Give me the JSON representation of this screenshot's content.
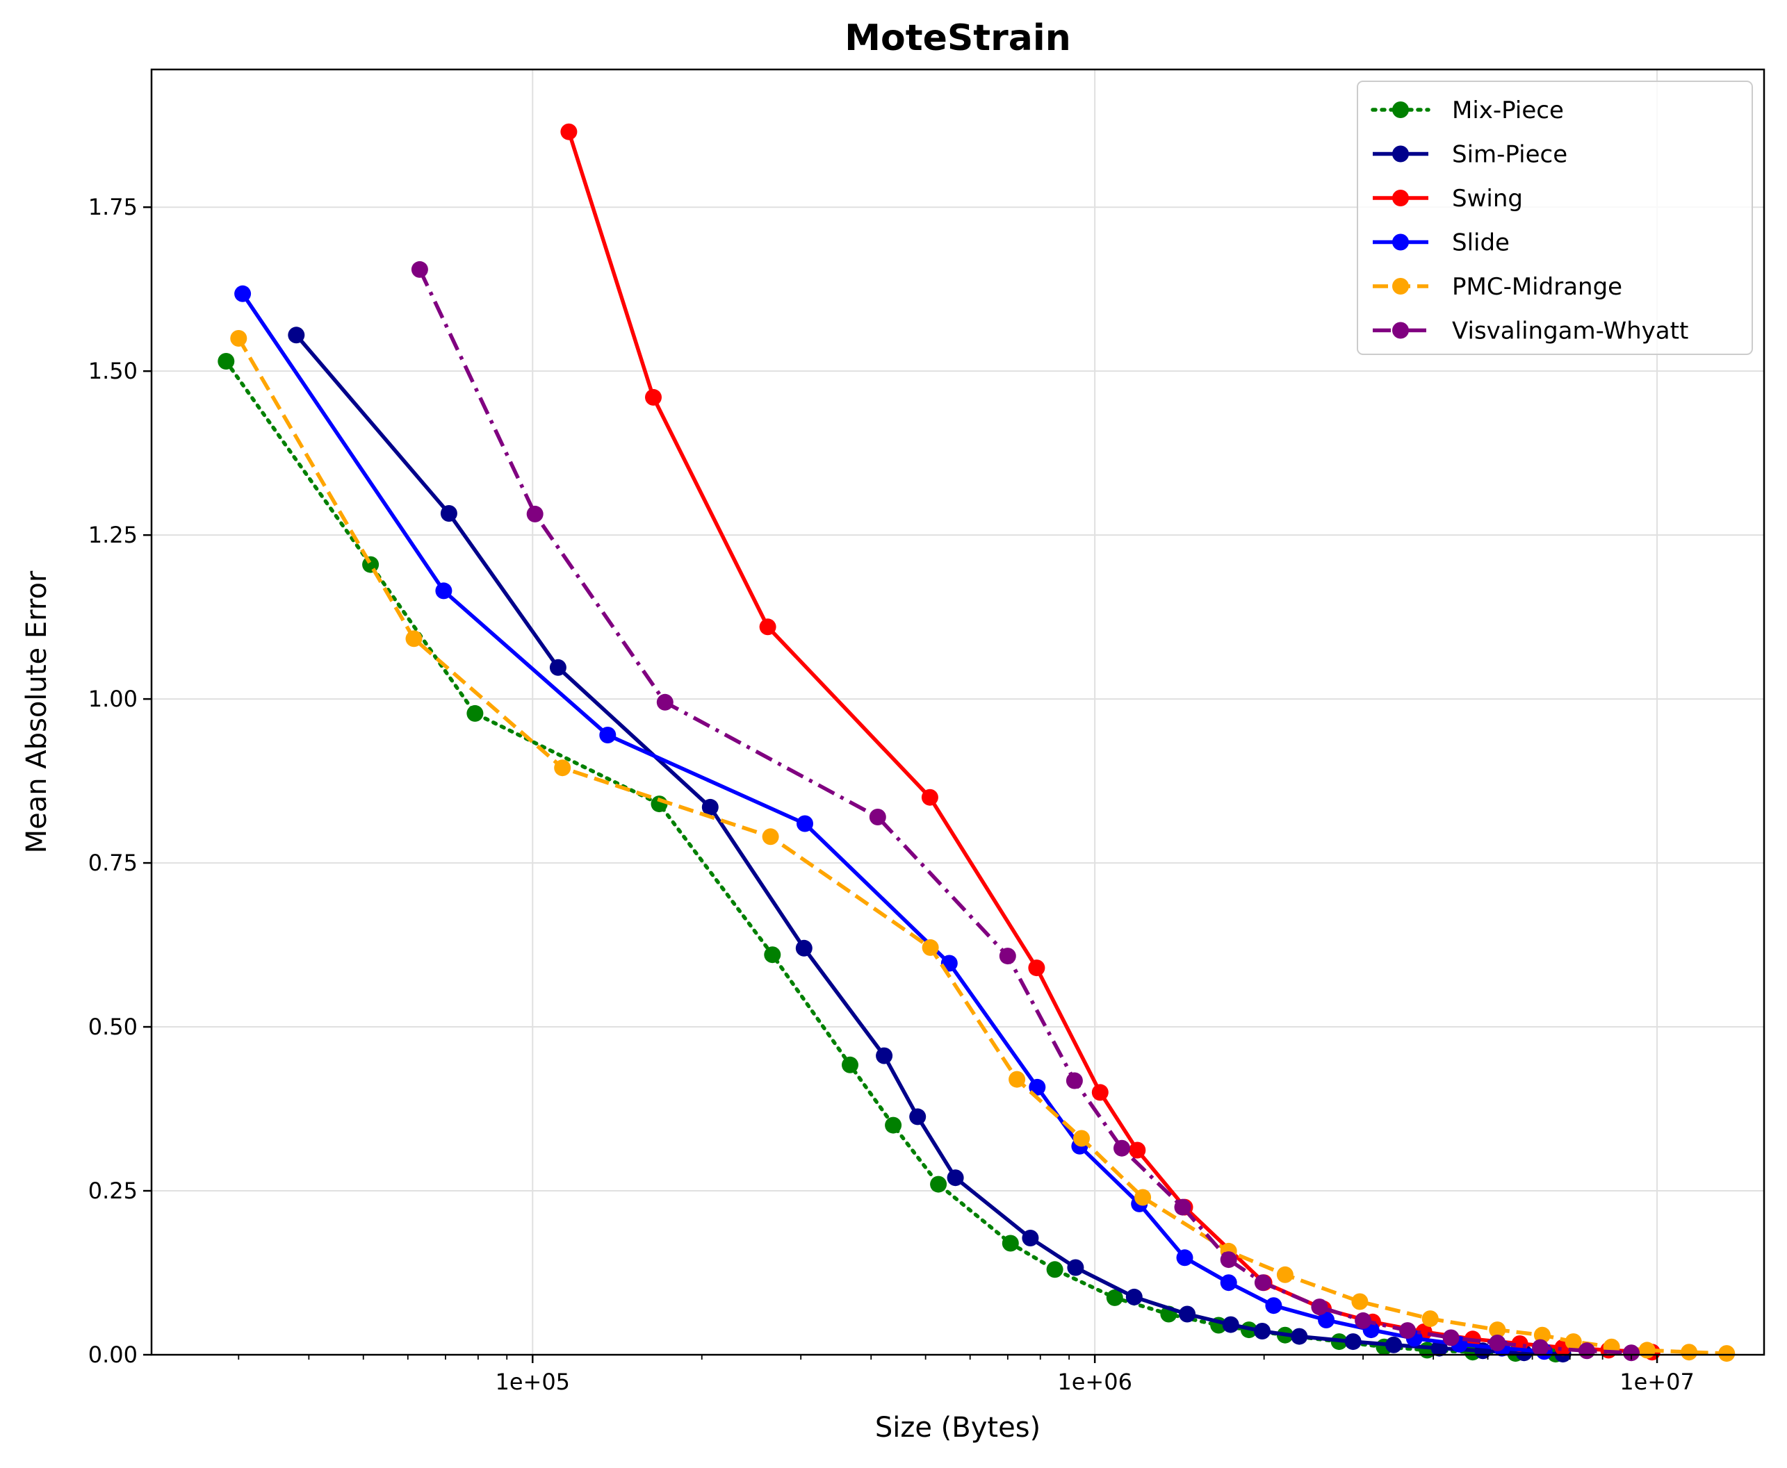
{
  "chart_data": {
    "type": "line",
    "title": "MoteStrain",
    "xlabel": "Size (Bytes)",
    "ylabel": "Mean Absolute Error",
    "xscale": "log",
    "xlim": [
      21000,
      15500000
    ],
    "ylim": [
      0,
      1.96
    ],
    "xticks": [
      {
        "value": 100000,
        "label": "1e+05"
      },
      {
        "value": 1000000,
        "label": "1e+06"
      },
      {
        "value": 10000000,
        "label": "1e+07"
      }
    ],
    "yticks": [
      {
        "value": 0.0,
        "label": "0.00"
      },
      {
        "value": 0.25,
        "label": "0.25"
      },
      {
        "value": 0.5,
        "label": "0.50"
      },
      {
        "value": 0.75,
        "label": "0.75"
      },
      {
        "value": 1.0,
        "label": "1.00"
      },
      {
        "value": 1.25,
        "label": "1.25"
      },
      {
        "value": 1.5,
        "label": "1.50"
      },
      {
        "value": 1.75,
        "label": "1.75"
      }
    ],
    "grid": true,
    "legend": "top-right",
    "series": [
      {
        "name": "Mix-Piece",
        "color": "#008000",
        "dash": "dotted",
        "points": [
          [
            28500,
            1.515
          ],
          [
            51500,
            1.205
          ],
          [
            79000,
            0.978
          ],
          [
            168000,
            0.84
          ],
          [
            267000,
            0.61
          ],
          [
            367000,
            0.442
          ],
          [
            438000,
            0.35
          ],
          [
            527000,
            0.26
          ],
          [
            708000,
            0.17
          ],
          [
            849000,
            0.13
          ],
          [
            1085000,
            0.087
          ],
          [
            1353000,
            0.062
          ],
          [
            1660000,
            0.045
          ],
          [
            1880000,
            0.038
          ],
          [
            2180000,
            0.03
          ],
          [
            2720000,
            0.02
          ],
          [
            3270000,
            0.012
          ],
          [
            3900000,
            0.007
          ],
          [
            4700000,
            0.004
          ],
          [
            5600000,
            0.002
          ],
          [
            6600000,
            0.001
          ]
        ]
      },
      {
        "name": "Sim-Piece",
        "color": "#00008b",
        "dash": "solid",
        "points": [
          [
            38000,
            1.555
          ],
          [
            71000,
            1.283
          ],
          [
            111000,
            1.048
          ],
          [
            207000,
            0.835
          ],
          [
            304000,
            0.62
          ],
          [
            422000,
            0.456
          ],
          [
            484000,
            0.363
          ],
          [
            565000,
            0.27
          ],
          [
            768000,
            0.178
          ],
          [
            924000,
            0.133
          ],
          [
            1175000,
            0.088
          ],
          [
            1460000,
            0.062
          ],
          [
            1745000,
            0.046
          ],
          [
            1985000,
            0.036
          ],
          [
            2310000,
            0.028
          ],
          [
            2880000,
            0.02
          ],
          [
            3400000,
            0.015
          ],
          [
            4100000,
            0.01
          ],
          [
            4900000,
            0.006
          ],
          [
            5800000,
            0.003
          ],
          [
            6800000,
            0.001
          ]
        ]
      },
      {
        "name": "Swing",
        "color": "#ff0000",
        "dash": "solid",
        "points": [
          [
            116000,
            1.865
          ],
          [
            164000,
            1.46
          ],
          [
            262000,
            1.11
          ],
          [
            509000,
            0.85
          ],
          [
            788000,
            0.59
          ],
          [
            1022000,
            0.4
          ],
          [
            1190000,
            0.312
          ],
          [
            1445000,
            0.225
          ],
          [
            2000000,
            0.11
          ],
          [
            2550000,
            0.07
          ],
          [
            3120000,
            0.05
          ],
          [
            3850000,
            0.035
          ],
          [
            4700000,
            0.024
          ],
          [
            5700000,
            0.017
          ],
          [
            6800000,
            0.011
          ],
          [
            8200000,
            0.007
          ],
          [
            9800000,
            0.004
          ]
        ]
      },
      {
        "name": "Slide",
        "color": "#0000ff",
        "dash": "solid",
        "points": [
          [
            30500,
            1.618
          ],
          [
            69500,
            1.165
          ],
          [
            136000,
            0.945
          ],
          [
            305000,
            0.81
          ],
          [
            551000,
            0.597
          ],
          [
            790000,
            0.408
          ],
          [
            940000,
            0.318
          ],
          [
            1200000,
            0.23
          ],
          [
            1445000,
            0.148
          ],
          [
            1730000,
            0.11
          ],
          [
            2080000,
            0.075
          ],
          [
            2580000,
            0.053
          ],
          [
            3100000,
            0.038
          ],
          [
            3700000,
            0.025
          ],
          [
            4450000,
            0.016
          ],
          [
            5300000,
            0.01
          ],
          [
            6300000,
            0.005
          ]
        ]
      },
      {
        "name": "PMC-Midrange",
        "color": "#ffa500",
        "dash": "dashed",
        "points": [
          [
            30000,
            1.55
          ],
          [
            61500,
            1.092
          ],
          [
            113000,
            0.895
          ],
          [
            265000,
            0.79
          ],
          [
            510000,
            0.621
          ],
          [
            727000,
            0.42
          ],
          [
            947000,
            0.33
          ],
          [
            1217000,
            0.24
          ],
          [
            1730000,
            0.158
          ],
          [
            2180000,
            0.122
          ],
          [
            2960000,
            0.081
          ],
          [
            3950000,
            0.055
          ],
          [
            5200000,
            0.038
          ],
          [
            6250000,
            0.03
          ],
          [
            7100000,
            0.02
          ],
          [
            8300000,
            0.012
          ],
          [
            9600000,
            0.007
          ],
          [
            11400000,
            0.004
          ],
          [
            13300000,
            0.002
          ]
        ]
      },
      {
        "name": "Visvalingam-Whyatt",
        "color": "#800080",
        "dash": "dashdot",
        "points": [
          [
            63000,
            1.655
          ],
          [
            101000,
            1.282
          ],
          [
            172000,
            0.995
          ],
          [
            411000,
            0.82
          ],
          [
            700000,
            0.608
          ],
          [
            920000,
            0.418
          ],
          [
            1117000,
            0.315
          ],
          [
            1433000,
            0.225
          ],
          [
            1730000,
            0.145
          ],
          [
            1990000,
            0.11
          ],
          [
            2510000,
            0.073
          ],
          [
            3000000,
            0.052
          ],
          [
            3600000,
            0.037
          ],
          [
            4300000,
            0.026
          ],
          [
            5200000,
            0.018
          ],
          [
            6200000,
            0.011
          ],
          [
            7500000,
            0.006
          ],
          [
            9000000,
            0.003
          ]
        ]
      }
    ]
  }
}
